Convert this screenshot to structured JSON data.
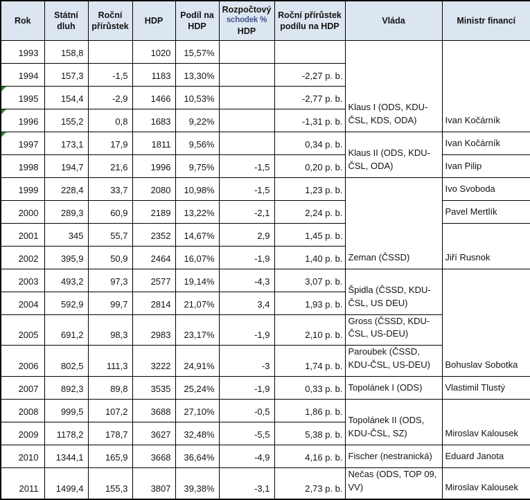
{
  "colors": {
    "header_bg": "#dce6f1",
    "border": "#000000",
    "flag_green": "#2e8b3a",
    "header_text": "#121212",
    "header_mid_line": "#44548c"
  },
  "table": {
    "columns": [
      {
        "key": "year",
        "label": "Rok"
      },
      {
        "key": "debt",
        "label": "Státní dluh"
      },
      {
        "key": "increase",
        "label": "Roční přírůstek"
      },
      {
        "key": "gdp",
        "label": "HDP"
      },
      {
        "key": "share",
        "label": "Podíl na HDP"
      },
      {
        "key": "deficit",
        "label": "Rozpočtový schodek % HDP",
        "lines": [
          "Rozpočtový",
          "schodek %",
          "HDP"
        ]
      },
      {
        "key": "share_pb",
        "label": "Roční přírůstek podílu na HDP"
      },
      {
        "key": "government",
        "label": "Vláda"
      },
      {
        "key": "minister",
        "label": "Ministr financí"
      }
    ],
    "rows": [
      {
        "year": "1993",
        "debt": "158,8",
        "increase": "",
        "gdp": "1020",
        "share": "15,57%",
        "deficit": "",
        "share_pb": "",
        "flag": false
      },
      {
        "year": "1994",
        "debt": "157,3",
        "increase": "-1,5",
        "gdp": "1183",
        "share": "13,30%",
        "deficit": "",
        "share_pb": "-2,27 p. b.",
        "flag": false
      },
      {
        "year": "1995",
        "debt": "154,4",
        "increase": "-2,9",
        "gdp": "1466",
        "share": "10,53%",
        "deficit": "",
        "share_pb": "-2,77 p. b.",
        "flag": true
      },
      {
        "year": "1996",
        "debt": "155,2",
        "increase": "0,8",
        "gdp": "1683",
        "share": "9,22%",
        "deficit": "",
        "share_pb": "-1,31 p. b.",
        "flag": true
      },
      {
        "year": "1997",
        "debt": "173,1",
        "increase": "17,9",
        "gdp": "1811",
        "share": "9,56%",
        "deficit": "",
        "share_pb": "0,34 p. b.",
        "flag": true
      },
      {
        "year": "1998",
        "debt": "194,7",
        "increase": "21,6",
        "gdp": "1996",
        "share": "9,75%",
        "deficit": "-1,5",
        "share_pb": "0,20 p. b.",
        "flag": false
      },
      {
        "year": "1999",
        "debt": "228,4",
        "increase": "33,7",
        "gdp": "2080",
        "share": "10,98%",
        "deficit": "-1,5",
        "share_pb": "1,23 p. b.",
        "flag": false
      },
      {
        "year": "2000",
        "debt": "289,3",
        "increase": "60,9",
        "gdp": "2189",
        "share": "13,22%",
        "deficit": "-2,1",
        "share_pb": "2,24 p. b.",
        "flag": false
      },
      {
        "year": "2001",
        "debt": "345",
        "increase": "55,7",
        "gdp": "2352",
        "share": "14,67%",
        "deficit": "2,9",
        "share_pb": "1,45 p. b.",
        "flag": false
      },
      {
        "year": "2002",
        "debt": "395,9",
        "increase": "50,9",
        "gdp": "2464",
        "share": "16,07%",
        "deficit": "-1,9",
        "share_pb": "1,40 p. b.",
        "flag": false
      },
      {
        "year": "2003",
        "debt": "493,2",
        "increase": "97,3",
        "gdp": "2577",
        "share": "19,14%",
        "deficit": "-4,3",
        "share_pb": "3,07 p. b.",
        "flag": false
      },
      {
        "year": "2004",
        "debt": "592,9",
        "increase": "99,7",
        "gdp": "2814",
        "share": "21,07%",
        "deficit": "3,4",
        "share_pb": "1,93 p. b.",
        "flag": false
      },
      {
        "year": "2005",
        "debt": "691,2",
        "increase": "98,3",
        "gdp": "2983",
        "share": "23,17%",
        "deficit": "-1,9",
        "share_pb": "2,10 p. b.",
        "flag": false
      },
      {
        "year": "2006",
        "debt": "802,5",
        "increase": "111,3",
        "gdp": "3222",
        "share": "24,91%",
        "deficit": "-3",
        "share_pb": "1,74 p. b.",
        "flag": false
      },
      {
        "year": "2007",
        "debt": "892,3",
        "increase": "89,8",
        "gdp": "3535",
        "share": "25,24%",
        "deficit": "-1,9",
        "share_pb": "0,33 p. b.",
        "flag": false
      },
      {
        "year": "2008",
        "debt": "999,5",
        "increase": "107,2",
        "gdp": "3688",
        "share": "27,10%",
        "deficit": "-0,5",
        "share_pb": "1,86 p. b.",
        "flag": false
      },
      {
        "year": "2009",
        "debt": "1178,2",
        "increase": "178,7",
        "gdp": "3627",
        "share": "32,48%",
        "deficit": "-5,5",
        "share_pb": "5,38 p. b.",
        "flag": false
      },
      {
        "year": "2010",
        "debt": "1344,1",
        "increase": "165,9",
        "gdp": "3668",
        "share": "36,64%",
        "deficit": "-4,9",
        "share_pb": "4,16 p. b.",
        "flag": false
      },
      {
        "year": "2011",
        "debt": "1499,4",
        "increase": "155,3",
        "gdp": "3807",
        "share": "39,38%",
        "deficit": "-3,1",
        "share_pb": "2,73 p. b.",
        "flag": false
      }
    ],
    "government_spans": [
      {
        "start": "1993",
        "rows": 4,
        "label": "Klaus I (ODS, KDU-ČSL, KDS, ODA)"
      },
      {
        "start": "1997",
        "rows": 2,
        "label": "Klaus II (ODS, KDU-ČSL, ODA)"
      },
      {
        "start": "1999",
        "rows": 4,
        "label": "Zeman (ČSSD)"
      },
      {
        "start": "2003",
        "rows": 2,
        "label": "Špidla (ČSSD, KDU-ČSL, US DEU)"
      },
      {
        "start": "2005",
        "rows": 1,
        "label": "Gross (ČSSD, KDU-ČSL, US-DEU)"
      },
      {
        "start": "2006",
        "rows": 1,
        "label": "Paroubek (ČSSD, KDU-ČSL, US-DEU)"
      },
      {
        "start": "2007",
        "rows": 1,
        "label": "Topolánek I (ODS)"
      },
      {
        "start": "2008",
        "rows": 2,
        "label": "Topolánek II (ODS, KDU-ČSL, SZ)"
      },
      {
        "start": "2010",
        "rows": 1,
        "label": "Fischer (nestranická)"
      },
      {
        "start": "2011",
        "rows": 1,
        "label": "Nečas (ODS, TOP 09, VV)"
      }
    ],
    "minister_spans": [
      {
        "start": "1993",
        "rows": 4,
        "label": "Ivan Kočárník"
      },
      {
        "start": "1997",
        "rows": 1,
        "label": "Ivan Kočárník"
      },
      {
        "start": "1998",
        "rows": 1,
        "label": "Ivan Pilip"
      },
      {
        "start": "1999",
        "rows": 1,
        "label": "Ivo Svoboda"
      },
      {
        "start": "2000",
        "rows": 1,
        "label": "Pavel Mertlík"
      },
      {
        "start": "2001",
        "rows": 2,
        "label": "Jiří Rusnok"
      },
      {
        "start": "2003",
        "rows": 4,
        "label": "Bohuslav Sobotka"
      },
      {
        "start": "2007",
        "rows": 1,
        "label": "Vlastimil Tlustý"
      },
      {
        "start": "2008",
        "rows": 2,
        "label": "Miroslav Kalousek"
      },
      {
        "start": "2010",
        "rows": 1,
        "label": "Eduard Janota"
      },
      {
        "start": "2011",
        "rows": 1,
        "label": "Miroslav Kalousek"
      }
    ]
  }
}
